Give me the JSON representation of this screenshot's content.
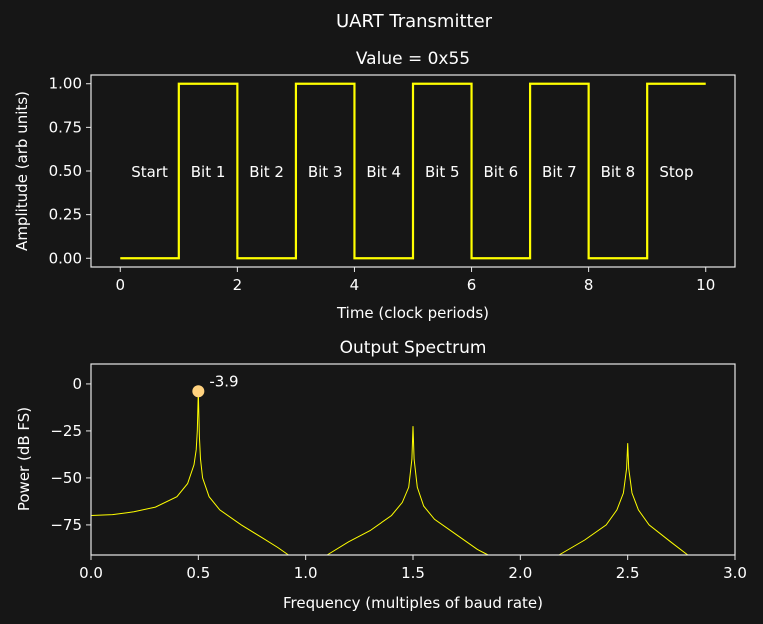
{
  "suptitle": "UART Transmitter",
  "colors": {
    "background": "#161616",
    "signal": "#ffff00",
    "marker": "#ffd27f",
    "text": "#ffffff"
  },
  "chart_data": [
    {
      "type": "line",
      "title": "Value = 0x55",
      "xlabel": "Time (clock periods)",
      "ylabel": "Amplitude (arb units)",
      "xlim": [
        -0.5,
        10.5
      ],
      "ylim": [
        -0.05,
        1.05
      ],
      "xticks": [
        0,
        2,
        4,
        6,
        8,
        10
      ],
      "xtick_labels": [
        "0",
        "2",
        "4",
        "6",
        "8",
        "10"
      ],
      "yticks": [
        0,
        0.25,
        0.5,
        0.75,
        1.0
      ],
      "ytick_labels": [
        "0.00",
        "0.25",
        "0.50",
        "0.75",
        "1.00"
      ],
      "step_x": [
        0,
        1,
        2,
        3,
        4,
        5,
        6,
        7,
        8,
        9,
        10
      ],
      "step_values": [
        0,
        1,
        0,
        1,
        0,
        1,
        0,
        1,
        0,
        1
      ],
      "annotations": [
        {
          "x": 0.5,
          "y": 0.5,
          "text": "Start"
        },
        {
          "x": 1.5,
          "y": 0.5,
          "text": "Bit 1"
        },
        {
          "x": 2.5,
          "y": 0.5,
          "text": "Bit 2"
        },
        {
          "x": 3.5,
          "y": 0.5,
          "text": "Bit 3"
        },
        {
          "x": 4.5,
          "y": 0.5,
          "text": "Bit 4"
        },
        {
          "x": 5.5,
          "y": 0.5,
          "text": "Bit 5"
        },
        {
          "x": 6.5,
          "y": 0.5,
          "text": "Bit 6"
        },
        {
          "x": 7.5,
          "y": 0.5,
          "text": "Bit 7"
        },
        {
          "x": 8.5,
          "y": 0.5,
          "text": "Bit 8"
        },
        {
          "x": 9.5,
          "y": 0.5,
          "text": "Stop"
        }
      ]
    },
    {
      "type": "line",
      "title": "Output Spectrum",
      "xlabel": "Frequency (multiples of baud rate)",
      "ylabel": "Power (dB FS)",
      "xlim": [
        0,
        3
      ],
      "ylim": [
        -91,
        10.6
      ],
      "xticks": [
        0,
        0.5,
        1,
        1.5,
        2,
        2.5,
        3
      ],
      "xtick_labels": [
        "0.0",
        "0.5",
        "1.0",
        "1.5",
        "2.0",
        "2.5",
        "3.0"
      ],
      "yticks": [
        0,
        -25,
        -50,
        -75
      ],
      "ytick_labels": [
        "0",
        "−25",
        "−50",
        "−75"
      ],
      "segments": [
        [
          [
            0,
            -70
          ],
          [
            0.1,
            -69.5
          ],
          [
            0.2,
            -68
          ],
          [
            0.3,
            -65.5
          ],
          [
            0.4,
            -60
          ],
          [
            0.45,
            -53
          ],
          [
            0.48,
            -43
          ],
          [
            0.49,
            -35
          ],
          [
            0.495,
            -25
          ],
          [
            0.5,
            -3.9
          ],
          [
            0.505,
            -28
          ],
          [
            0.51,
            -40
          ],
          [
            0.52,
            -50
          ],
          [
            0.55,
            -60
          ],
          [
            0.6,
            -67
          ],
          [
            0.7,
            -75
          ],
          [
            0.8,
            -82
          ],
          [
            0.87,
            -87
          ],
          [
            0.92,
            -91
          ]
        ],
        [
          [
            1.1,
            -91
          ],
          [
            1.2,
            -84
          ],
          [
            1.3,
            -78
          ],
          [
            1.4,
            -70
          ],
          [
            1.45,
            -63
          ],
          [
            1.48,
            -55
          ],
          [
            1.495,
            -40
          ],
          [
            1.5,
            -22.5
          ],
          [
            1.505,
            -40
          ],
          [
            1.52,
            -55
          ],
          [
            1.55,
            -65
          ],
          [
            1.6,
            -72
          ],
          [
            1.7,
            -80
          ],
          [
            1.8,
            -88
          ],
          [
            1.85,
            -91
          ]
        ],
        [
          [
            2.18,
            -91
          ],
          [
            2.3,
            -83
          ],
          [
            2.4,
            -75
          ],
          [
            2.45,
            -67
          ],
          [
            2.48,
            -58
          ],
          [
            2.495,
            -45
          ],
          [
            2.5,
            -31.5
          ],
          [
            2.505,
            -45
          ],
          [
            2.52,
            -58
          ],
          [
            2.55,
            -67
          ],
          [
            2.6,
            -75
          ],
          [
            2.7,
            -84
          ],
          [
            2.78,
            -91
          ]
        ]
      ],
      "peak_marker": {
        "x": 0.5,
        "y": -3.9,
        "label": "-3.9"
      }
    }
  ]
}
